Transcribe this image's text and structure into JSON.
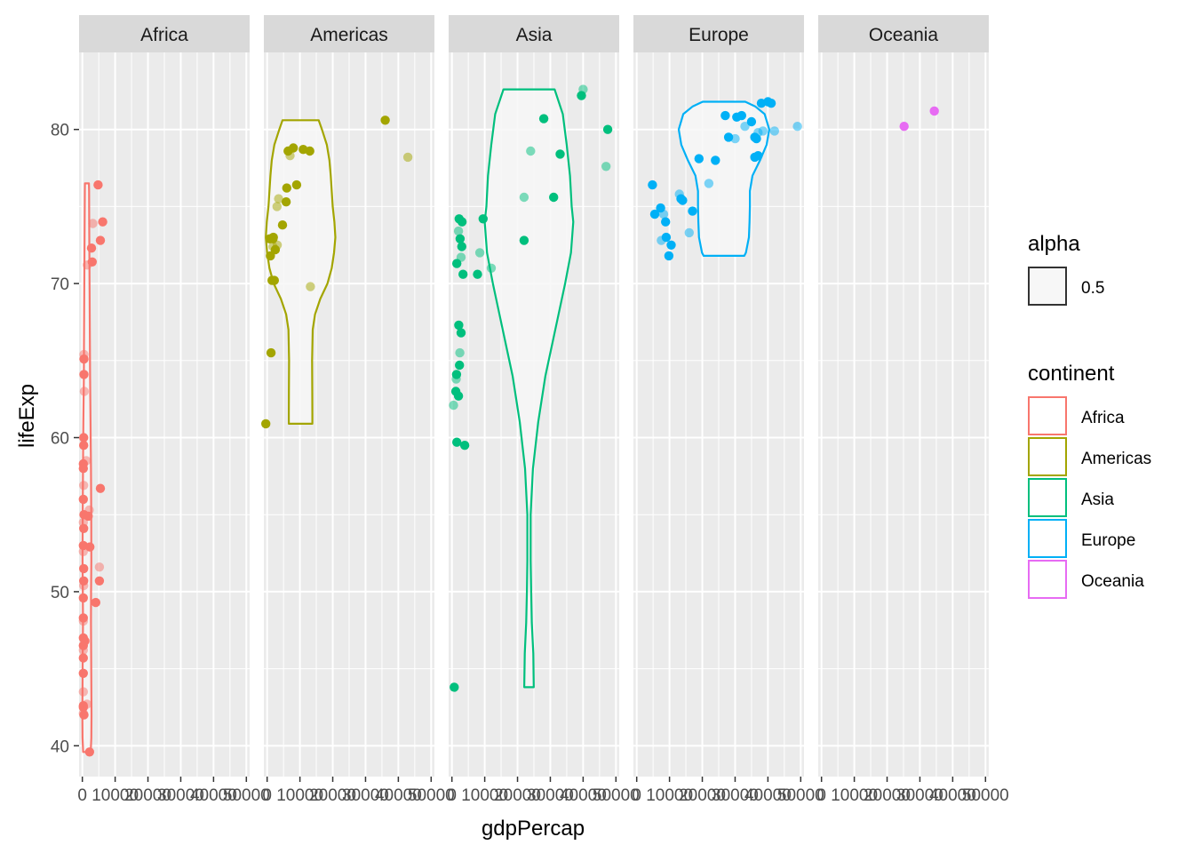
{
  "chart_data": {
    "type": "violin+jitter",
    "facet_by": "continent",
    "facets": [
      "Africa",
      "Americas",
      "Asia",
      "Europe",
      "Oceania"
    ],
    "xlabel": "gdpPercap",
    "ylabel": "lifeExp",
    "xlim": [
      -1000,
      51000
    ],
    "ylim": [
      38,
      85
    ],
    "x_ticks": [
      0,
      10000,
      20000,
      30000,
      40000,
      50000
    ],
    "x_tick_labels": [
      "0",
      "10000",
      "20000",
      "30000",
      "40000",
      "50000"
    ],
    "y_ticks": [
      40,
      50,
      60,
      70,
      80
    ],
    "y_tick_labels": [
      "40",
      "50",
      "60",
      "70",
      "80"
    ],
    "grid": true,
    "legend_position": "right",
    "legend_alpha": {
      "title": "alpha",
      "label": "0.5"
    },
    "legend_color": {
      "title": "continent",
      "entries": [
        "Africa",
        "Americas",
        "Asia",
        "Europe",
        "Oceania"
      ]
    },
    "colors": {
      "Africa": "#F8766D",
      "Americas": "#A3A500",
      "Asia": "#00BF7D",
      "Europe": "#00B0F6",
      "Oceania": "#E76BF3",
      "panel_bg": "#EBEBEB",
      "strip_bg": "#D9D9D9",
      "violin_fill": "#F7F7F7"
    },
    "violins": {
      "Africa": [
        [
          39.6,
          1150
        ],
        [
          40.5,
          1350
        ],
        [
          42,
          1400
        ],
        [
          44,
          1350
        ],
        [
          46,
          1280
        ],
        [
          48,
          1220
        ],
        [
          50,
          1250
        ],
        [
          52,
          1350
        ],
        [
          55,
          1300
        ],
        [
          58,
          1220
        ],
        [
          61,
          1100
        ],
        [
          64,
          950
        ],
        [
          66,
          900
        ],
        [
          68,
          850
        ],
        [
          70,
          800
        ],
        [
          72,
          750
        ],
        [
          74,
          700
        ],
        [
          76,
          650
        ],
        [
          76.5,
          600
        ]
      ],
      "Americas": [
        [
          60.9,
          3600
        ],
        [
          61.5,
          3600
        ],
        [
          63,
          3550
        ],
        [
          65,
          3500
        ],
        [
          67,
          3700
        ],
        [
          68,
          4400
        ],
        [
          69,
          6000
        ],
        [
          70,
          8200
        ],
        [
          71,
          9500
        ],
        [
          72,
          10200
        ],
        [
          73,
          10600
        ],
        [
          74,
          10300
        ],
        [
          75,
          9800
        ],
        [
          76,
          9500
        ],
        [
          77,
          9200
        ],
        [
          78,
          8800
        ],
        [
          79,
          8000
        ],
        [
          80,
          6500
        ],
        [
          80.6,
          5500
        ]
      ],
      "Asia": [
        [
          43.8,
          1450
        ],
        [
          46,
          1300
        ],
        [
          48,
          850
        ],
        [
          50,
          650
        ],
        [
          52,
          500
        ],
        [
          55,
          500
        ],
        [
          58,
          1200
        ],
        [
          61,
          2800
        ],
        [
          64,
          5000
        ],
        [
          66,
          7000
        ],
        [
          68,
          9000
        ],
        [
          70,
          11000
        ],
        [
          72,
          12800
        ],
        [
          74,
          13500
        ],
        [
          75,
          13000
        ],
        [
          77,
          12500
        ],
        [
          79,
          11500
        ],
        [
          81,
          10300
        ],
        [
          82.6,
          7800
        ]
      ],
      "Europe": [
        [
          71.8,
          6200
        ],
        [
          72,
          6700
        ],
        [
          73,
          7600
        ],
        [
          74,
          7800
        ],
        [
          75,
          7900
        ],
        [
          76,
          7900
        ],
        [
          77,
          8700
        ],
        [
          78,
          11000
        ],
        [
          79,
          13000
        ],
        [
          80,
          13800
        ],
        [
          81,
          12400
        ],
        [
          81.5,
          9500
        ],
        [
          81.8,
          6500
        ]
      ]
    },
    "points": {
      "Africa": [
        [
          4800,
          76.4
        ],
        [
          6200,
          74.0
        ],
        [
          3200,
          73.9
        ],
        [
          2800,
          72.3
        ],
        [
          5500,
          72.8
        ],
        [
          1500,
          71.2
        ],
        [
          3000,
          71.4
        ],
        [
          5500,
          56.7
        ],
        [
          1200,
          58.5
        ],
        [
          400,
          60.0
        ],
        [
          400,
          59.5
        ],
        [
          500,
          65.4
        ],
        [
          500,
          65.1
        ],
        [
          500,
          64.1
        ],
        [
          600,
          63.0
        ],
        [
          300,
          58.3
        ],
        [
          300,
          58.0
        ],
        [
          400,
          56.9
        ],
        [
          300,
          56.0
        ],
        [
          500,
          55.0
        ],
        [
          300,
          54.5
        ],
        [
          400,
          54.1
        ],
        [
          300,
          53.0
        ],
        [
          300,
          52.6
        ],
        [
          400,
          51.5
        ],
        [
          400,
          50.7
        ],
        [
          400,
          50.4
        ],
        [
          300,
          49.6
        ],
        [
          300,
          48.3
        ],
        [
          300,
          48.1
        ],
        [
          300,
          47.0
        ],
        [
          300,
          46.5
        ],
        [
          300,
          46.2
        ],
        [
          300,
          45.7
        ],
        [
          300,
          44.7
        ],
        [
          300,
          43.5
        ],
        [
          300,
          42.5
        ],
        [
          300,
          42.6
        ],
        [
          300,
          42.1
        ],
        [
          500,
          42.0
        ],
        [
          2200,
          39.6
        ],
        [
          5200,
          51.6
        ],
        [
          5200,
          50.7
        ],
        [
          2300,
          52.9
        ],
        [
          2100,
          55.3
        ],
        [
          1800,
          54.9
        ],
        [
          4100,
          49.3
        ],
        [
          1400,
          42.7
        ],
        [
          800,
          46.8
        ]
      ],
      "Americas": [
        [
          800,
          72.9
        ],
        [
          1000,
          71.8
        ],
        [
          2000,
          70.2
        ],
        [
          2200,
          70.2
        ],
        [
          1500,
          70.2
        ],
        [
          1800,
          72.4
        ],
        [
          1800,
          72.9
        ],
        [
          1900,
          73.0
        ],
        [
          3100,
          72.5
        ],
        [
          2500,
          72.2
        ],
        [
          4700,
          73.8
        ],
        [
          3500,
          75.5
        ],
        [
          5800,
          75.3
        ],
        [
          6000,
          76.2
        ],
        [
          7000,
          78.3
        ],
        [
          8000,
          78.8
        ],
        [
          13000,
          78.6
        ],
        [
          3000,
          75.0
        ],
        [
          9000,
          76.4
        ],
        [
          11000,
          78.7
        ],
        [
          13200,
          69.8
        ],
        [
          1200,
          65.5
        ],
        [
          36000,
          80.6
        ],
        [
          42900,
          78.2
        ],
        [
          -400,
          60.9
        ],
        [
          6400,
          78.6
        ]
      ],
      "Asia": [
        [
          2200,
          74.2
        ],
        [
          3100,
          74.0
        ],
        [
          2000,
          73.4
        ],
        [
          2500,
          72.9
        ],
        [
          3000,
          72.4
        ],
        [
          2800,
          71.7
        ],
        [
          3400,
          70.6
        ],
        [
          1500,
          71.3
        ],
        [
          8500,
          72.0
        ],
        [
          9500,
          74.2
        ],
        [
          7800,
          70.6
        ],
        [
          12000,
          71.0
        ],
        [
          2100,
          67.3
        ],
        [
          2800,
          66.8
        ],
        [
          2400,
          65.5
        ],
        [
          2300,
          64.7
        ],
        [
          1400,
          64.1
        ],
        [
          1300,
          63.8
        ],
        [
          1200,
          63.0
        ],
        [
          2000,
          62.7
        ],
        [
          500,
          62.1
        ],
        [
          1500,
          59.7
        ],
        [
          3900,
          59.5
        ],
        [
          24000,
          78.6
        ],
        [
          28000,
          80.7
        ],
        [
          33000,
          78.4
        ],
        [
          22000,
          75.6
        ],
        [
          31000,
          75.6
        ],
        [
          22000,
          72.8
        ],
        [
          40000,
          82.6
        ],
        [
          39500,
          82.2
        ],
        [
          47500,
          80.0
        ],
        [
          47000,
          77.6
        ],
        [
          700,
          43.8
        ]
      ],
      "Europe": [
        [
          5500,
          74.5
        ],
        [
          7300,
          74.9
        ],
        [
          8200,
          74.5
        ],
        [
          8800,
          74.0
        ],
        [
          9000,
          73.0
        ],
        [
          7500,
          72.8
        ],
        [
          10500,
          72.5
        ],
        [
          9800,
          71.8
        ],
        [
          13000,
          75.8
        ],
        [
          13500,
          75.5
        ],
        [
          14000,
          75.4
        ],
        [
          16000,
          73.3
        ],
        [
          17000,
          74.7
        ],
        [
          19000,
          78.1
        ],
        [
          22000,
          76.5
        ],
        [
          24000,
          78.0
        ],
        [
          28000,
          79.5
        ],
        [
          30000,
          79.4
        ],
        [
          30500,
          80.8
        ],
        [
          32000,
          80.9
        ],
        [
          33000,
          80.2
        ],
        [
          35000,
          80.5
        ],
        [
          36000,
          79.5
        ],
        [
          37000,
          79.8
        ],
        [
          38000,
          81.7
        ],
        [
          36500,
          79.4
        ],
        [
          38500,
          79.9
        ],
        [
          40000,
          81.8
        ],
        [
          41000,
          81.7
        ],
        [
          42000,
          79.9
        ],
        [
          37000,
          78.3
        ],
        [
          36000,
          78.2
        ],
        [
          49000,
          80.2
        ],
        [
          4800,
          76.4
        ],
        [
          27000,
          80.9
        ]
      ],
      "Oceania": [
        [
          25200,
          80.2
        ],
        [
          34400,
          81.2
        ]
      ]
    }
  }
}
